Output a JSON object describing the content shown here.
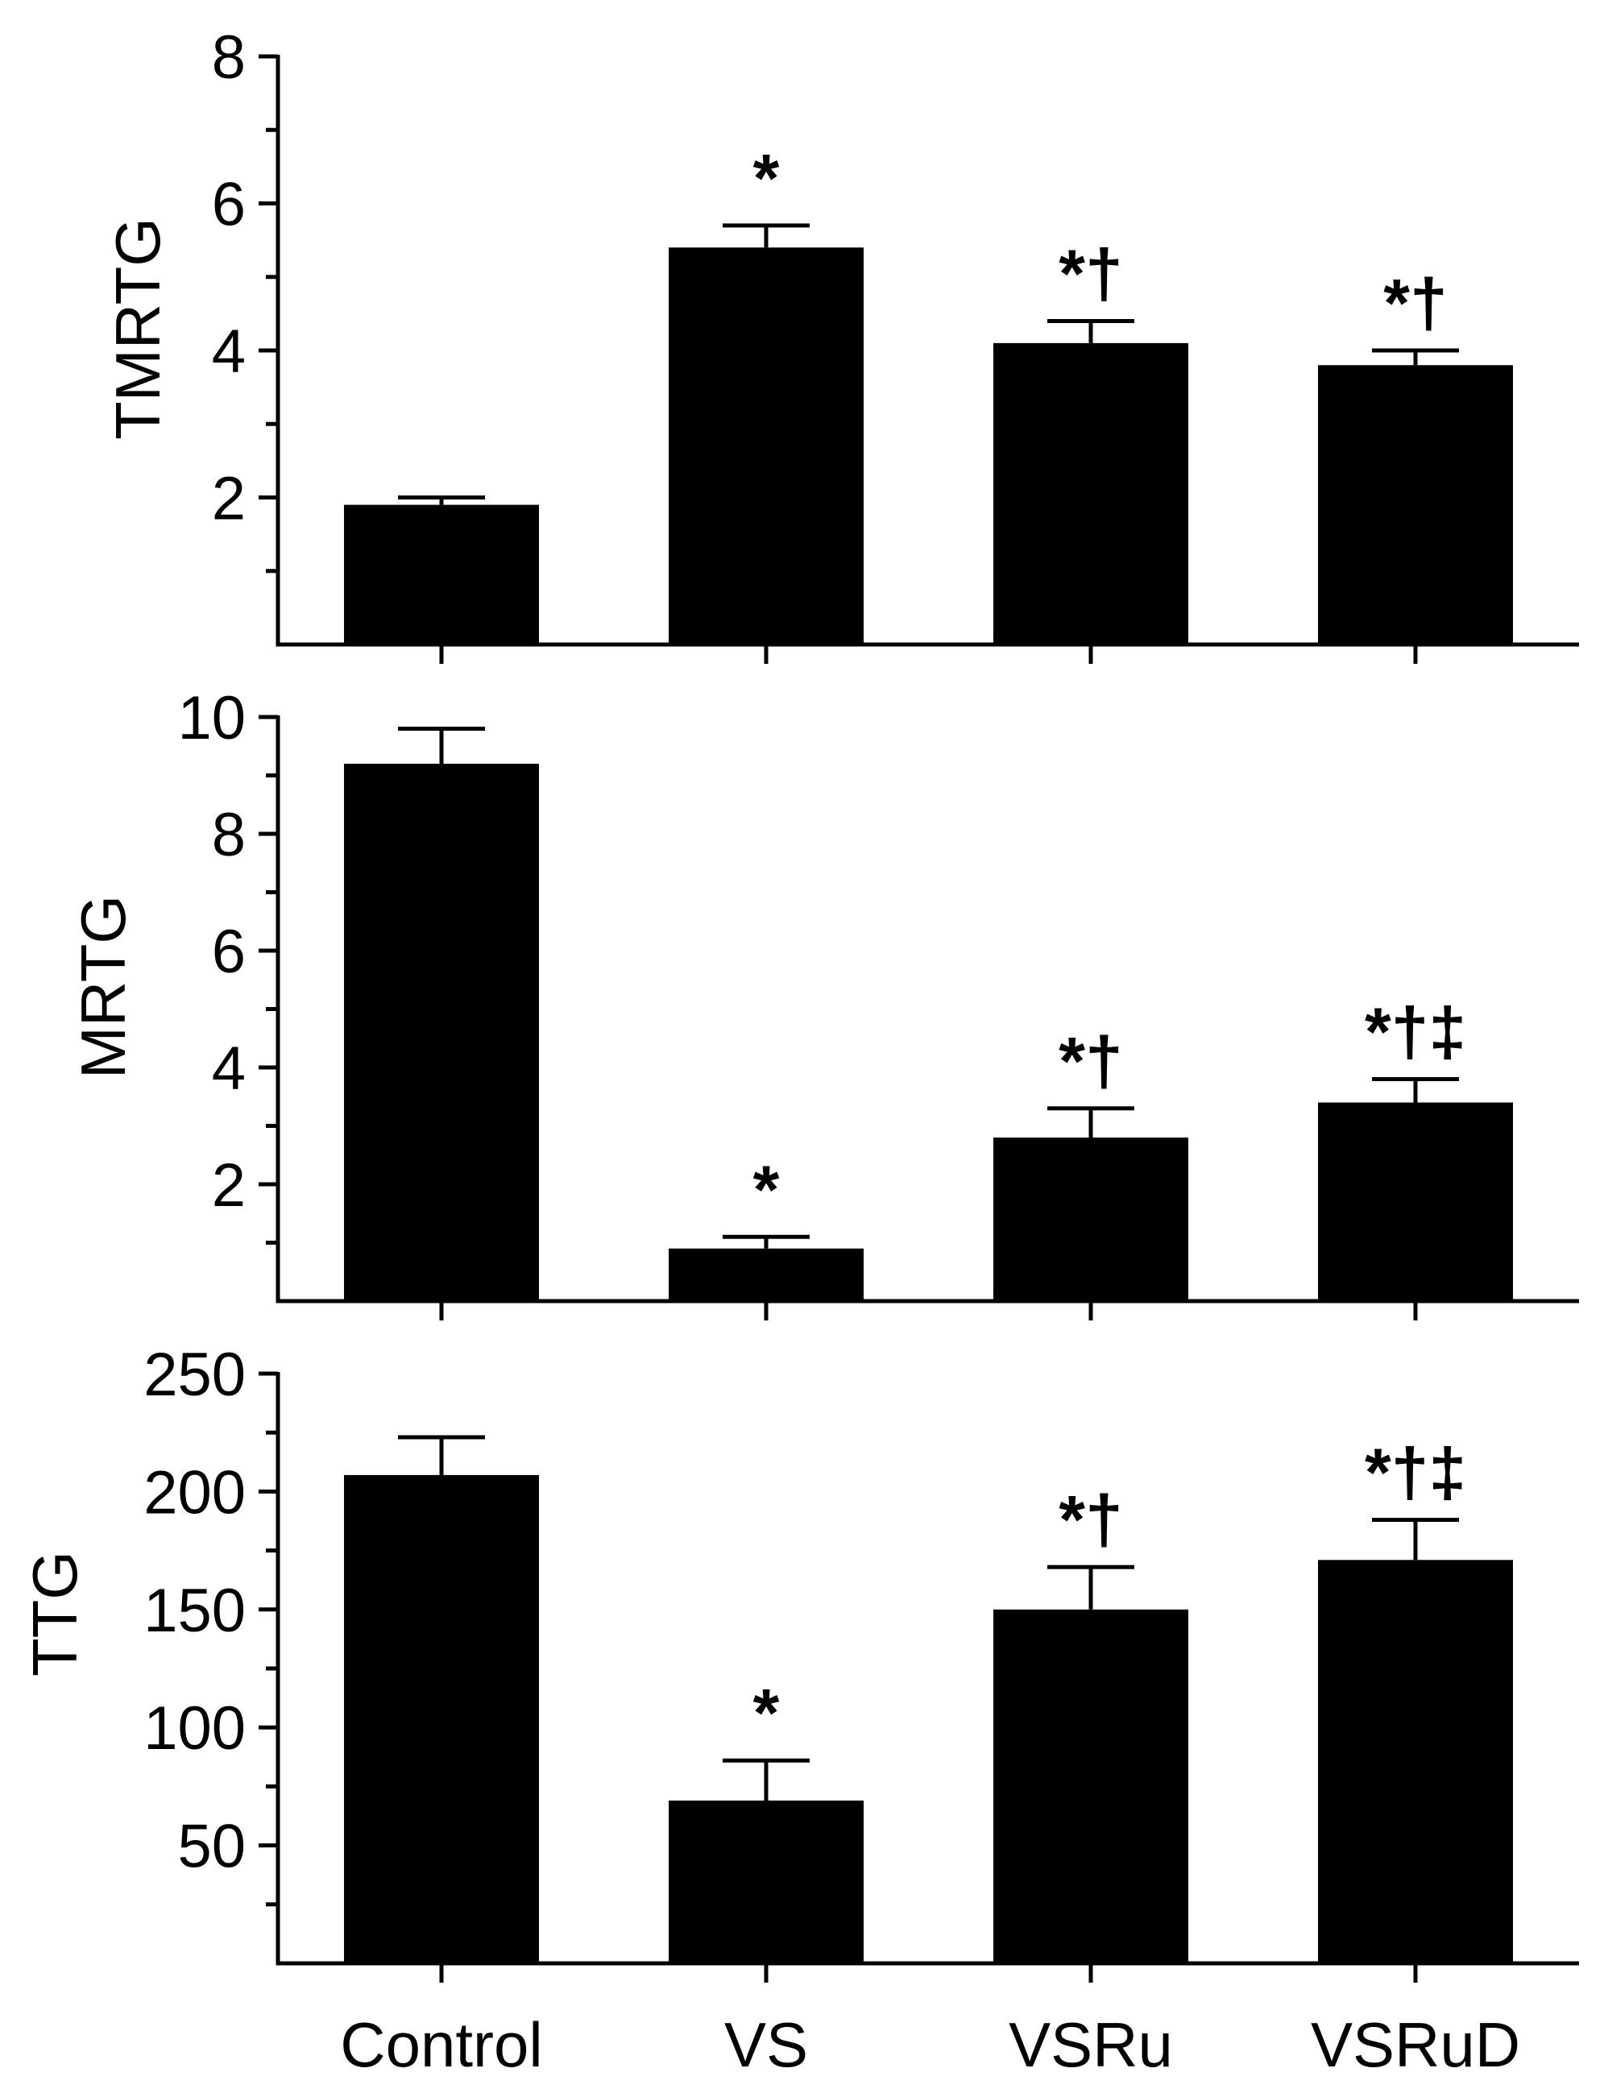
{
  "chart_data": [
    {
      "type": "bar",
      "ylabel": "TMRTG",
      "categories": [
        "Control",
        "VS",
        "VSRu",
        "VSRuD"
      ],
      "values": [
        1.9,
        5.4,
        4.1,
        3.8
      ],
      "errors": [
        0.1,
        0.3,
        0.3,
        0.2
      ],
      "annotations": [
        "",
        "*",
        "*†",
        "*†"
      ],
      "ylim": [
        0,
        8
      ],
      "yticks": [
        2,
        4,
        6,
        8
      ],
      "ytick_labels": [
        "2",
        "4",
        "6",
        "8"
      ]
    },
    {
      "type": "bar",
      "ylabel": "MRTG",
      "categories": [
        "Control",
        "VS",
        "VSRu",
        "VSRuD"
      ],
      "values": [
        9.2,
        0.9,
        2.8,
        3.4
      ],
      "errors": [
        0.6,
        0.2,
        0.5,
        0.4
      ],
      "annotations": [
        "",
        "*",
        "*†",
        "*†‡"
      ],
      "ylim": [
        0,
        10
      ],
      "yticks": [
        2,
        4,
        6,
        8,
        10
      ],
      "ytick_labels": [
        "2",
        "4",
        "6",
        "8",
        "10"
      ]
    },
    {
      "type": "bar",
      "ylabel": "TTG",
      "categories": [
        "Control",
        "VS",
        "VSRu",
        "VSRuD"
      ],
      "values": [
        207,
        69,
        150,
        171
      ],
      "errors": [
        16,
        17,
        18,
        17
      ],
      "annotations": [
        "",
        "*",
        "*†",
        "*†‡"
      ],
      "ylim": [
        0,
        250
      ],
      "yticks": [
        50,
        100,
        150,
        200,
        250
      ],
      "ytick_labels": [
        "50",
        "100",
        "150",
        "200",
        "250"
      ]
    }
  ],
  "xaxis": {
    "categories": [
      "Control",
      "VS",
      "VSRu",
      "VSRuD"
    ]
  },
  "colors": {
    "bar": "#000000",
    "axis": "#000000"
  }
}
